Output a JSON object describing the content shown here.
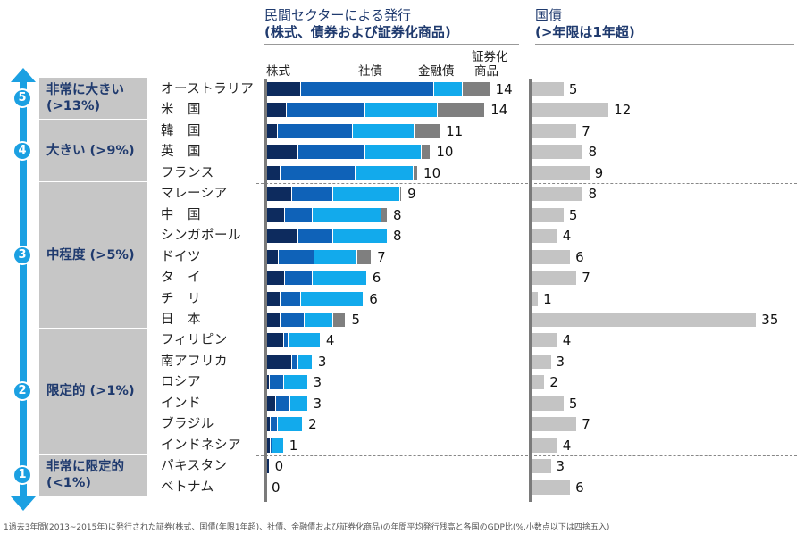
{
  "headers": {
    "private": {
      "line1": "民間セクターによる発行",
      "line2": "(株式、債券および証券化商品)"
    },
    "government": {
      "line1": "国債",
      "line2": "(>年限は1年超)"
    }
  },
  "footnote": "1過去3年間(2013~2015年)に発行された証券(株式、国債(年限1年超)、社債、金融債および証券化商品)の年間平均発行残高と各国のGDP比(%,小数点以下は四捨五入)",
  "colors": {
    "equity": "#0d2b5e",
    "corporate": "#0f62b8",
    "financial": "#12aaec",
    "securitized": "#7f7f7f",
    "government": "#c4c4c4",
    "arrow": "#1ba0e2",
    "tier_text": "#1f3a6e"
  },
  "tiers": [
    {
      "level": "5",
      "label_line1": "非常に大きい",
      "label_line2": "(>13%)"
    },
    {
      "level": "4",
      "label_line1": "大きい (>9%)",
      "label_line2": ""
    },
    {
      "level": "3",
      "label_line1": "中程度 (>5%)",
      "label_line2": ""
    },
    {
      "level": "2",
      "label_line1": "限定的 (>1%)",
      "label_line2": ""
    },
    {
      "level": "1",
      "label_line1": "非常に限定的",
      "label_line2": "(<1%)"
    }
  ],
  "chart_data": [
    {
      "type": "bar",
      "stacked": true,
      "orientation": "horizontal",
      "title": "民間セクターによる発行 (株式、債券および証券化商品)",
      "unit": "% of GDP",
      "series_names": [
        "株式",
        "社債",
        "金融債",
        "証券化商品"
      ],
      "segment_labels": {
        "equity": "株式",
        "corporate": "社債",
        "financial": "金融債",
        "securitized_line1": "証券化",
        "securitized_line2": "商品"
      },
      "categories": [
        "オーストラリア",
        "米　国",
        "韓　国",
        "英　国",
        "フランス",
        "マレーシア",
        "中　国",
        "シンガポール",
        "ドイツ",
        "タ　イ",
        "チ　リ",
        "日　本",
        "フィリピン",
        "南アフリカ",
        "ロシア",
        "インド",
        "ブラジル",
        "インドネシア",
        "パキスタン",
        "ベトナム"
      ],
      "tier_of_category": [
        5,
        5,
        4,
        4,
        4,
        3,
        3,
        3,
        3,
        3,
        3,
        3,
        2,
        2,
        2,
        2,
        2,
        2,
        1,
        1
      ],
      "series": [
        {
          "name": "株式",
          "values": [
            2.2,
            1.3,
            0.7,
            2.0,
            0.9,
            1.6,
            1.2,
            2.0,
            0.8,
            1.2,
            0.9,
            0.9,
            1.1,
            1.6,
            0.2,
            0.6,
            0.3,
            0.3,
            0.2,
            0
          ]
        },
        {
          "name": "社債",
          "values": [
            8.3,
            4.9,
            4.7,
            4.2,
            4.7,
            2.6,
            1.7,
            2.2,
            2.2,
            1.7,
            1.3,
            1.5,
            0.3,
            0.4,
            0.9,
            0.9,
            0.4,
            0.1,
            0,
            0
          ]
        },
        {
          "name": "金融債",
          "values": [
            1.8,
            4.5,
            3.9,
            3.5,
            3.6,
            4.2,
            4.3,
            3.4,
            2.7,
            3.4,
            3.9,
            1.8,
            2.0,
            0.9,
            1.5,
            1.1,
            1.6,
            0.7,
            0,
            0
          ]
        },
        {
          "name": "証券化商品",
          "values": [
            1.7,
            3.0,
            1.6,
            0.6,
            0.3,
            0.1,
            0.4,
            0,
            0.9,
            0,
            0,
            0.8,
            0,
            0,
            0,
            0,
            0,
            0,
            0,
            0
          ]
        }
      ],
      "totals": [
        14,
        14,
        11,
        10,
        10,
        9,
        8,
        8,
        7,
        6,
        6,
        5,
        4,
        3,
        3,
        3,
        2,
        1,
        0,
        0
      ],
      "xlim": [
        0,
        14
      ]
    },
    {
      "type": "bar",
      "orientation": "horizontal",
      "title": "国債 (>年限は1年超)",
      "unit": "% of GDP",
      "categories": [
        "オーストラリア",
        "米　国",
        "韓　国",
        "英　国",
        "フランス",
        "マレーシア",
        "中　国",
        "シンガポール",
        "ドイツ",
        "タ　イ",
        "チ　リ",
        "日　本",
        "フィリピン",
        "南アフリカ",
        "ロシア",
        "インド",
        "ブラジル",
        "インドネシア",
        "パキスタン",
        "ベトナム"
      ],
      "values": [
        5,
        12,
        7,
        8,
        9,
        8,
        5,
        4,
        6,
        7,
        1,
        35,
        4,
        3,
        2,
        5,
        7,
        4,
        3,
        6
      ],
      "xlim": [
        0,
        35
      ]
    }
  ]
}
